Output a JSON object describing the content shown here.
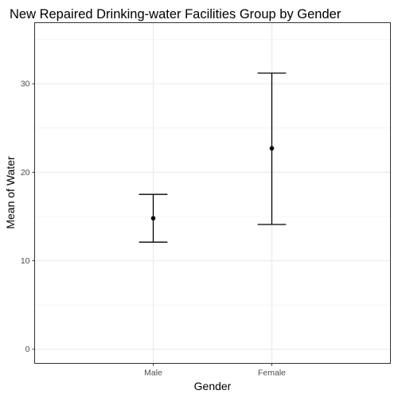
{
  "chart_data": {
    "type": "scatter",
    "title": "New Repaired Drinking-water Facilities Group by Gender",
    "xlabel": "Gender",
    "ylabel": "Mean of Water",
    "categories": [
      "Male",
      "Female"
    ],
    "values": [
      14.8,
      22.7
    ],
    "error_lower": [
      12.1,
      14.1
    ],
    "error_upper": [
      17.5,
      31.2
    ],
    "ylim": [
      -1.6,
      36.9
    ],
    "yticks": [
      0,
      10,
      20,
      30
    ],
    "ytick_labels": [
      "0",
      "10",
      "20",
      "30"
    ],
    "grid": true,
    "legend": "none",
    "colors": {
      "background": "#ffffff",
      "grid_major": "#ebebeb",
      "grid_minor": "#f5f5f5",
      "panel_border": "#333333",
      "marks": "#000000",
      "tick_text": "#4d4d4d"
    }
  }
}
